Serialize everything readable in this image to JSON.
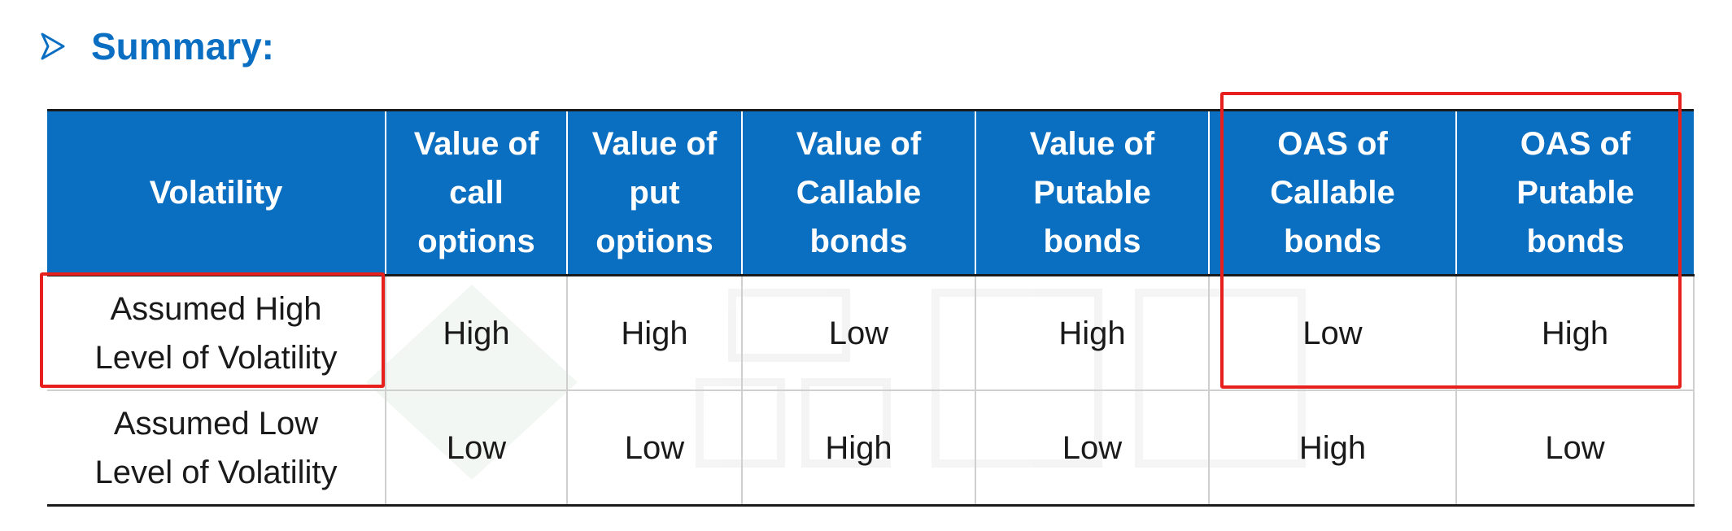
{
  "heading": {
    "title": "Summary:",
    "bullet_icon": "arrow-right-outline-icon"
  },
  "colors": {
    "heading": "#0a6fc2",
    "header_bg": "#0b6fc1",
    "highlight": "#e8201d"
  },
  "table": {
    "headers": [
      "Volatility",
      "Value of\ncall\noptions",
      "Value of\nput\noptions",
      "Value of\nCallable\nbonds",
      "Value of\nPutable\nbonds",
      "OAS of\nCallable\nbonds",
      "OAS of\nPutable\nbonds"
    ],
    "rows": [
      [
        "Assumed High\nLevel of Volatility",
        "High",
        "High",
        "Low",
        "High",
        "Low",
        "High"
      ],
      [
        "Assumed Low\nLevel of Volatility",
        "Low",
        "Low",
        "High",
        "Low",
        "High",
        "Low"
      ]
    ]
  }
}
